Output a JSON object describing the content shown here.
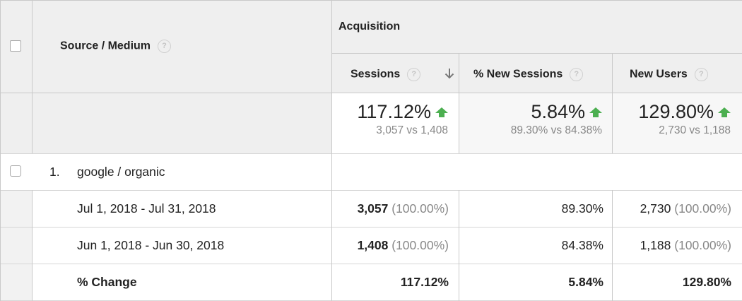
{
  "header": {
    "dimension_label": "Source / Medium",
    "group_label": "Acquisition",
    "columns": [
      {
        "label": "Sessions"
      },
      {
        "label": "% New Sessions"
      },
      {
        "label": "New Users"
      }
    ],
    "help_glyph": "?"
  },
  "summary": [
    {
      "pct": "117.12%",
      "compare": "3,057 vs 1,408",
      "trend": "up"
    },
    {
      "pct": "5.84%",
      "compare": "89.30% vs 84.38%",
      "trend": "up"
    },
    {
      "pct": "129.80%",
      "compare": "2,730 vs 1,188",
      "trend": "up"
    }
  ],
  "row": {
    "index": "1.",
    "source": "google / organic",
    "periods": [
      {
        "label": "Jul 1, 2018 - Jul 31, 2018",
        "sessions": "3,057",
        "sessions_pct": "(100.00%)",
        "new_sessions": "89.30%",
        "new_users": "2,730",
        "new_users_pct": "(100.00%)"
      },
      {
        "label": "Jun 1, 2018 - Jun 30, 2018",
        "sessions": "1,408",
        "sessions_pct": "(100.00%)",
        "new_sessions": "84.38%",
        "new_users": "1,188",
        "new_users_pct": "(100.00%)"
      }
    ],
    "change": {
      "label": "% Change",
      "sessions": "117.12%",
      "new_sessions": "5.84%",
      "new_users": "129.80%"
    }
  },
  "colors": {
    "up_arrow": "#4caf50",
    "header_bg": "#efefef",
    "muted_text": "#888888"
  },
  "icons": {
    "sort": "arrow-down-icon",
    "trend": "arrow-up-icon",
    "help": "help-circle-icon"
  }
}
